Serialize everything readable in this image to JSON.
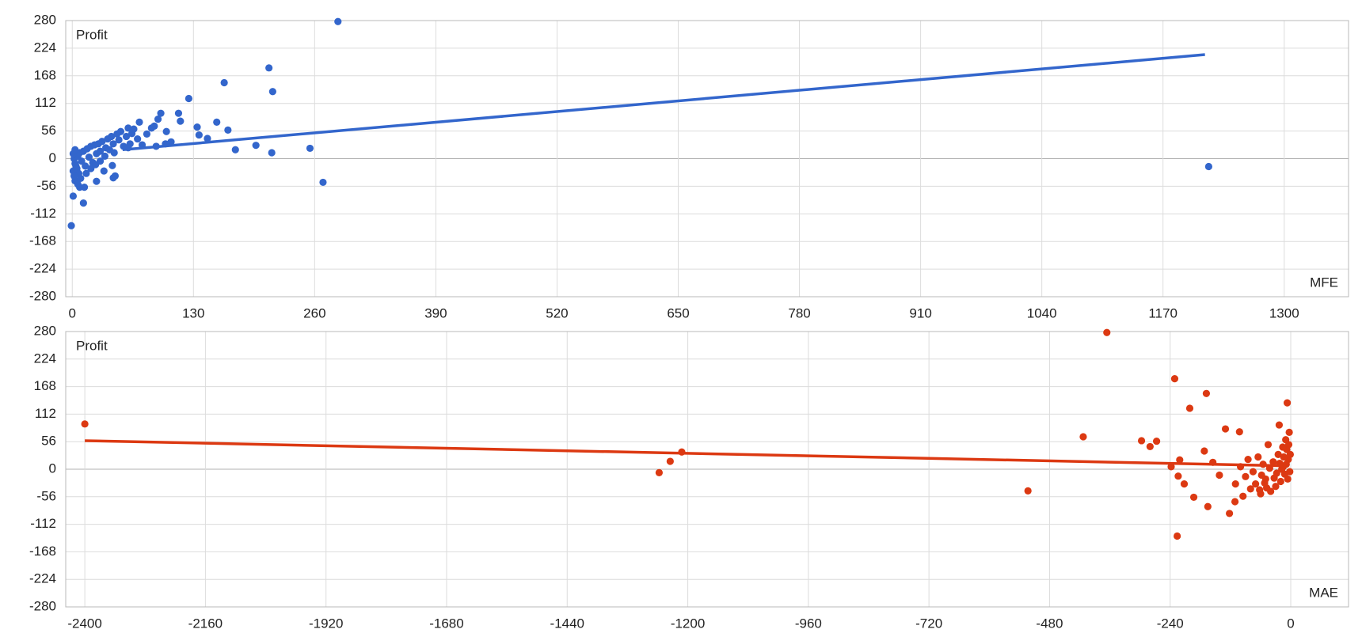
{
  "chart_data": [
    {
      "type": "scatter",
      "y_label": "Profit",
      "x_label": "MFE",
      "color": "#3366cc",
      "grid": true,
      "xlim": [
        -7,
        1369
      ],
      "ylim": [
        -280,
        280
      ],
      "xticks": [
        0,
        130,
        260,
        390,
        520,
        650,
        780,
        910,
        1040,
        1170,
        1300
      ],
      "yticks": [
        -280,
        -224,
        -168,
        -112,
        -56,
        0,
        56,
        112,
        168,
        224,
        280
      ],
      "x": [
        285,
        211,
        215,
        163,
        125,
        1219,
        269,
        255,
        214,
        197,
        175,
        167,
        155,
        145,
        134,
        136,
        114,
        116,
        95,
        92,
        88,
        101,
        106,
        72,
        64,
        60,
        43,
        44,
        26,
        12,
        -1,
        1,
        8,
        13,
        2,
        3,
        4,
        5,
        6,
        7,
        8,
        10,
        12,
        14,
        16,
        18,
        20,
        22,
        24,
        26,
        28,
        30,
        32,
        34,
        36,
        38,
        40,
        42,
        44,
        46,
        48,
        50,
        52,
        55,
        58,
        62,
        66,
        70,
        75,
        80,
        85,
        3,
        6,
        9,
        1,
        2,
        4,
        1,
        3,
        15,
        20,
        25,
        30,
        35,
        45,
        60,
        90,
        100
      ],
      "y": [
        278,
        184,
        136,
        154,
        122,
        -16,
        -48,
        21,
        12,
        27,
        18,
        58,
        74,
        41,
        64,
        48,
        92,
        76,
        92,
        80,
        66,
        55,
        34,
        74,
        51,
        62,
        -14,
        -39,
        -46,
        -90,
        -136,
        -76,
        -58,
        -58,
        0,
        -10,
        8,
        -20,
        5,
        -30,
        12,
        -5,
        15,
        -15,
        20,
        3,
        25,
        -8,
        28,
        10,
        30,
        15,
        35,
        -25,
        22,
        40,
        18,
        45,
        30,
        -35,
        50,
        38,
        55,
        25,
        45,
        30,
        60,
        40,
        28,
        50,
        62,
        -45,
        -52,
        -40,
        -25,
        -35,
        -15,
        10,
        18,
        -30,
        -20,
        -12,
        -5,
        5,
        12,
        22,
        25,
        30
      ],
      "trendline": {
        "x": [
          54,
          1215
        ],
        "y": [
          18,
          211
        ]
      }
    },
    {
      "type": "scatter",
      "y_label": "Profit",
      "x_label": "MAE",
      "color": "#dc3912",
      "grid": true,
      "xlim": [
        -2438,
        115
      ],
      "ylim": [
        -280,
        280
      ],
      "xticks": [
        -2400,
        -2160,
        -1920,
        -1680,
        -1440,
        -1200,
        -960,
        -720,
        -480,
        -240,
        0
      ],
      "yticks": [
        -280,
        -224,
        -168,
        -112,
        -56,
        0,
        56,
        112,
        168,
        224,
        280
      ],
      "x": [
        -366,
        -2400,
        -1257,
        -1235,
        -1212,
        -523,
        -413,
        -297,
        -280,
        -267,
        -231,
        -168,
        -201,
        -226,
        -221,
        -238,
        -224,
        -212,
        -193,
        -165,
        -122,
        -130,
        -172,
        -155,
        -142,
        -111,
        -102,
        -7,
        -23,
        -5,
        -8,
        -10,
        -3,
        -12,
        -15,
        -20,
        -25,
        -30,
        -35,
        -40,
        -45,
        -50,
        -55,
        -60,
        -65,
        -70,
        -75,
        -80,
        -85,
        -90,
        -95,
        -100,
        -18,
        -22,
        -28,
        -33,
        -42,
        -48,
        -52,
        -58,
        -62,
        -2,
        -1,
        -4,
        -6,
        -9,
        -14,
        -16,
        -110
      ],
      "y": [
        278,
        92,
        -7,
        16,
        35,
        -44,
        66,
        58,
        46,
        57,
        184,
        154,
        124,
        -136,
        19,
        5,
        -14,
        -30,
        -57,
        -76,
        -90,
        82,
        37,
        14,
        -12,
        -66,
        76,
        135,
        90,
        20,
        40,
        60,
        75,
        -10,
        5,
        -25,
        30,
        -35,
        15,
        -45,
        50,
        -20,
        10,
        -50,
        25,
        -30,
        -5,
        -40,
        20,
        -15,
        -55,
        5,
        0,
        12,
        -8,
        -18,
        2,
        -38,
        -28,
        -12,
        -42,
        -5,
        30,
        50,
        -20,
        10,
        25,
        45,
        -30
      ],
      "trendline": {
        "x": [
          -2400,
          -15
        ],
        "y": [
          58,
          7
        ]
      }
    }
  ]
}
